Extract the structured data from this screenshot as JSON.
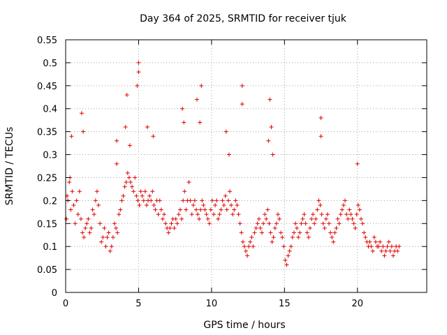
{
  "chart_data": {
    "type": "scatter",
    "title": "Day 364 of 2025, SRMTID for receiver tjuk",
    "xlabel": "GPS time / hours",
    "ylabel": "SRMTID / TECUs",
    "xlim": [
      0,
      24.75
    ],
    "ylim": [
      0,
      0.55
    ],
    "xticks": [
      0,
      5,
      10,
      15,
      20
    ],
    "xtick_labels": [
      "0",
      "5",
      "10",
      "15",
      "20"
    ],
    "yticks": [
      0,
      0.05,
      0.1,
      0.15,
      0.2,
      0.25,
      0.3,
      0.35,
      0.4,
      0.45,
      0.5,
      0.55
    ],
    "ytick_labels": [
      "0",
      "0.05",
      "0.1",
      "0.15",
      "0.2",
      "0.25",
      "0.3",
      "0.35",
      "0.4",
      "0.45",
      "0.5",
      "0.55"
    ],
    "grid": true,
    "marker": "+",
    "series": [
      {
        "name": "SRMTID",
        "color": "#e00000",
        "x": [
          0.05,
          0.15,
          0.25,
          0.35,
          0.45,
          0.55,
          0.65,
          0.75,
          0.85,
          0.95,
          1.05,
          1.15,
          1.25,
          1.35,
          1.45,
          1.55,
          1.65,
          1.75,
          1.85,
          1.95,
          2.05,
          2.15,
          2.25,
          2.35,
          2.45,
          2.55,
          2.65,
          2.75,
          2.85,
          2.95,
          3.05,
          3.15,
          3.25,
          3.35,
          3.45,
          3.55,
          3.65,
          3.75,
          3.85,
          3.95,
          4.05,
          4.15,
          4.25,
          4.35,
          4.45,
          4.55,
          4.65,
          4.75,
          4.85,
          4.95,
          5.05,
          5.15,
          5.25,
          5.35,
          5.45,
          5.55,
          5.65,
          5.75,
          5.85,
          5.95,
          6.05,
          6.15,
          6.25,
          6.35,
          6.45,
          6.55,
          6.65,
          6.75,
          6.85,
          6.95,
          7.05,
          7.15,
          7.25,
          7.35,
          7.45,
          7.55,
          7.65,
          7.75,
          7.85,
          7.95,
          8.05,
          8.15,
          8.25,
          8.35,
          8.45,
          8.55,
          8.65,
          8.75,
          8.85,
          8.95,
          9.05,
          9.15,
          9.25,
          9.35,
          9.45,
          9.55,
          9.65,
          9.75,
          9.85,
          9.95,
          10.05,
          10.15,
          10.25,
          10.35,
          10.45,
          10.55,
          10.65,
          10.75,
          10.85,
          10.95,
          11.05,
          11.15,
          11.25,
          11.35,
          11.45,
          11.55,
          11.65,
          11.75,
          11.85,
          11.95,
          12.05,
          12.15,
          12.25,
          12.35,
          12.45,
          12.55,
          12.65,
          12.75,
          12.85,
          12.95,
          13.05,
          13.15,
          13.25,
          13.35,
          13.45,
          13.55,
          13.65,
          13.75,
          13.85,
          13.95,
          14.05,
          14.15,
          14.25,
          14.35,
          14.45,
          14.55,
          14.65,
          14.75,
          14.85,
          14.95,
          15.05,
          15.15,
          15.25,
          15.35,
          15.45,
          15.55,
          15.65,
          15.75,
          15.85,
          15.95,
          16.05,
          16.15,
          16.25,
          16.35,
          16.45,
          16.55,
          16.65,
          16.75,
          16.85,
          16.95,
          17.05,
          17.15,
          17.25,
          17.35,
          17.45,
          17.55,
          17.65,
          17.75,
          17.85,
          17.95,
          18.05,
          18.15,
          18.25,
          18.35,
          18.45,
          18.55,
          18.65,
          18.75,
          18.85,
          18.95,
          19.05,
          19.15,
          19.25,
          19.35,
          19.45,
          19.55,
          19.65,
          19.75,
          19.85,
          19.95,
          20.05,
          20.15,
          20.25,
          20.35,
          20.45,
          20.55,
          20.65,
          20.75,
          20.85,
          20.95,
          21.05,
          21.15,
          21.25,
          21.35,
          21.45,
          21.55,
          21.65,
          21.75,
          21.85,
          21.95,
          22.05,
          22.15,
          22.25,
          22.35,
          22.45,
          22.55,
          22.65,
          22.75,
          22.85,
          0.1,
          0.3,
          4.2,
          5.0,
          5.0,
          4.9,
          4.4,
          9.3,
          9.2,
          12.1,
          12.1,
          14.0,
          14.1,
          17.5,
          17.5,
          20.0,
          1.1,
          1.2,
          3.5,
          3.5,
          4.1,
          0.4,
          8.0,
          8.1,
          9.0,
          11.0,
          11.2,
          5.6,
          6.0,
          13.9,
          14.2
        ],
        "y": [
          0.16,
          0.2,
          0.24,
          0.18,
          0.22,
          0.19,
          0.15,
          0.2,
          0.17,
          0.22,
          0.16,
          0.13,
          0.12,
          0.14,
          0.15,
          0.16,
          0.13,
          0.14,
          0.18,
          0.17,
          0.2,
          0.22,
          0.19,
          0.15,
          0.11,
          0.12,
          0.14,
          0.1,
          0.12,
          0.13,
          0.09,
          0.1,
          0.12,
          0.15,
          0.14,
          0.13,
          0.17,
          0.18,
          0.2,
          0.21,
          0.23,
          0.24,
          0.26,
          0.25,
          0.24,
          0.23,
          0.22,
          0.25,
          0.21,
          0.2,
          0.19,
          0.22,
          0.21,
          0.2,
          0.22,
          0.19,
          0.2,
          0.21,
          0.2,
          0.22,
          0.19,
          0.18,
          0.2,
          0.17,
          0.2,
          0.18,
          0.16,
          0.17,
          0.15,
          0.14,
          0.13,
          0.14,
          0.15,
          0.16,
          0.14,
          0.16,
          0.15,
          0.17,
          0.18,
          0.16,
          0.2,
          0.22,
          0.18,
          0.2,
          0.24,
          0.2,
          0.17,
          0.19,
          0.2,
          0.18,
          0.17,
          0.16,
          0.18,
          0.2,
          0.19,
          0.18,
          0.17,
          0.16,
          0.15,
          0.18,
          0.2,
          0.17,
          0.19,
          0.2,
          0.16,
          0.17,
          0.18,
          0.2,
          0.19,
          0.21,
          0.18,
          0.2,
          0.22,
          0.19,
          0.17,
          0.18,
          0.2,
          0.19,
          0.17,
          0.15,
          0.13,
          0.11,
          0.1,
          0.09,
          0.08,
          0.1,
          0.11,
          0.12,
          0.1,
          0.13,
          0.14,
          0.15,
          0.16,
          0.14,
          0.13,
          0.15,
          0.17,
          0.16,
          0.18,
          0.15,
          0.13,
          0.11,
          0.12,
          0.14,
          0.15,
          0.17,
          0.16,
          0.13,
          0.12,
          0.1,
          0.07,
          0.06,
          0.08,
          0.09,
          0.1,
          0.12,
          0.13,
          0.15,
          0.14,
          0.12,
          0.13,
          0.15,
          0.16,
          0.17,
          0.15,
          0.13,
          0.12,
          0.14,
          0.16,
          0.17,
          0.15,
          0.16,
          0.18,
          0.2,
          0.19,
          0.17,
          0.15,
          0.14,
          0.16,
          0.17,
          0.15,
          0.13,
          0.12,
          0.11,
          0.13,
          0.14,
          0.16,
          0.15,
          0.17,
          0.18,
          0.19,
          0.2,
          0.17,
          0.16,
          0.18,
          0.17,
          0.16,
          0.15,
          0.14,
          0.17,
          0.19,
          0.18,
          0.16,
          0.15,
          0.13,
          0.12,
          0.11,
          0.1,
          0.11,
          0.1,
          0.09,
          0.12,
          0.11,
          0.1,
          0.1,
          0.11,
          0.09,
          0.1,
          0.08,
          0.09,
          0.1,
          0.11,
          0.09,
          0.1,
          0.08,
          0.09,
          0.1,
          0.09,
          0.1,
          0.21,
          0.25,
          0.43,
          0.5,
          0.48,
          0.45,
          0.32,
          0.45,
          0.37,
          0.45,
          0.41,
          0.42,
          0.36,
          0.38,
          0.34,
          0.28,
          0.39,
          0.35,
          0.33,
          0.28,
          0.36,
          0.34,
          0.4,
          0.37,
          0.42,
          0.35,
          0.3,
          0.36,
          0.34,
          0.33,
          0.3
        ]
      }
    ]
  }
}
